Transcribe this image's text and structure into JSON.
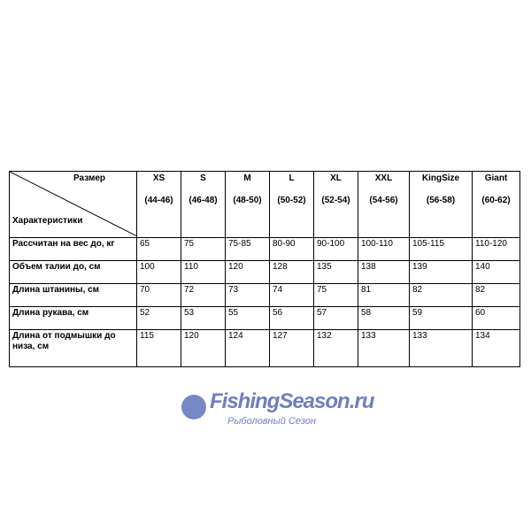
{
  "table": {
    "corner_top": "Размер",
    "corner_bottom": "Характеристики",
    "sizes": [
      {
        "name": "XS",
        "range": "(44-46)"
      },
      {
        "name": "S",
        "range": "(46-48)"
      },
      {
        "name": "M",
        "range": "(48-50)"
      },
      {
        "name": "L",
        "range": "(50-52)"
      },
      {
        "name": "XL",
        "range": "(52-54)"
      },
      {
        "name": "XXL",
        "range": "(54-56)"
      },
      {
        "name": "KingSize",
        "range": "(56-58)"
      },
      {
        "name": "Giant",
        "range": "(60-62)"
      }
    ],
    "rows": [
      {
        "label": "Рассчитан на вес до, кг",
        "values": [
          " 65",
          "75",
          "75-85",
          "80-90",
          "90-100",
          "100-110",
          "105-115",
          "110-120"
        ]
      },
      {
        "label": "Объем талии до, см",
        "values": [
          "100",
          "110",
          "120",
          "128",
          "135",
          "138",
          "139",
          "140"
        ]
      },
      {
        "label": "Длина штанины, см",
        "values": [
          "70",
          "72",
          "73",
          "74",
          "75",
          "81",
          "82",
          "82"
        ]
      },
      {
        "label": "Длина рукава, см",
        "values": [
          "52",
          "53",
          "55",
          "56",
          "57",
          "58",
          "59",
          "60"
        ]
      },
      {
        "label": "Длина от подмышки до низа, см",
        "values": [
          "115",
          "120",
          "124",
          "127",
          "132",
          "133",
          "133",
          "134"
        ]
      }
    ]
  },
  "watermark": {
    "brand": "FishingSeason.ru",
    "subtitle": "Рыболовный Сезон",
    "color": "#3f55a8"
  }
}
